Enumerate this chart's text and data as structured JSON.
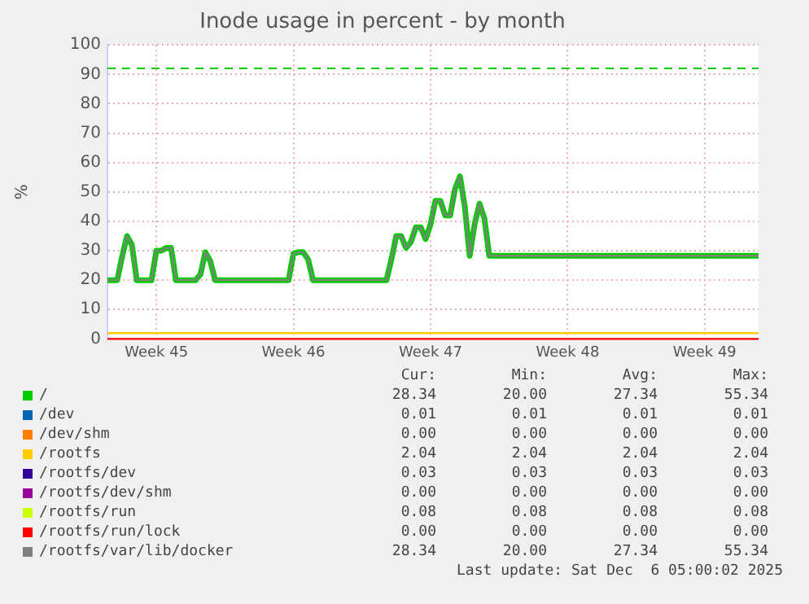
{
  "chart_data": {
    "type": "line",
    "title": "Inode usage in percent - by month",
    "ylabel": "%",
    "categories": [
      null,
      null,
      null,
      null,
      null,
      null,
      null,
      null,
      null,
      null,
      "Week 45",
      null,
      null,
      null,
      null,
      null,
      null,
      null,
      null,
      null,
      null,
      null,
      null,
      null,
      null,
      null,
      null,
      null,
      null,
      null,
      null,
      null,
      null,
      null,
      null,
      null,
      null,
      null,
      "Week 46",
      null,
      null,
      null,
      null,
      null,
      null,
      null,
      null,
      null,
      null,
      null,
      null,
      null,
      null,
      null,
      null,
      null,
      null,
      null,
      null,
      null,
      null,
      null,
      null,
      null,
      null,
      null,
      "Week 47",
      null,
      null,
      null,
      null,
      null,
      null,
      null,
      null,
      null,
      null,
      null,
      null,
      null,
      null,
      null,
      null,
      null,
      null,
      null,
      null,
      null,
      null,
      null,
      null,
      null,
      null,
      null,
      "Week 48",
      null,
      null,
      null,
      null,
      null,
      null,
      null,
      null,
      null,
      null,
      null,
      null,
      null,
      null,
      null,
      null,
      null,
      null,
      null,
      null,
      null,
      null,
      null,
      null,
      null,
      null,
      null,
      "Week 49",
      null,
      null,
      null,
      null,
      null,
      null,
      null,
      null,
      null,
      null,
      null
    ],
    "ylim": [
      0,
      100
    ],
    "yticks": [
      0,
      10,
      20,
      30,
      40,
      50,
      60,
      70,
      80,
      90,
      100
    ],
    "grid": true,
    "legend": "bottom",
    "marker": "none",
    "line_style": "solid",
    "ref_lines": [
      {
        "axis": "y",
        "value": 92,
        "color": "#00cc00",
        "line_style": "dashed"
      }
    ],
    "series": [
      {
        "name": "/",
        "color": "#00cc00",
        "values": [
          20,
          20,
          20,
          28,
          35,
          32,
          20,
          20,
          20,
          20,
          30,
          30,
          31,
          31,
          20,
          20,
          20,
          20,
          20,
          22,
          29.5,
          26.5,
          20,
          20,
          20,
          20,
          20,
          20,
          20,
          20,
          20,
          20,
          20,
          20,
          20,
          20,
          20,
          20,
          29,
          29.5,
          29.5,
          27,
          20,
          20,
          20,
          20,
          20,
          20,
          20,
          20,
          20,
          20,
          20,
          20,
          20,
          20,
          20,
          20,
          27,
          35,
          35,
          31,
          33,
          38,
          38,
          34,
          39,
          47,
          47,
          42,
          42,
          51,
          55.3,
          45,
          28.3,
          39,
          46,
          41,
          28.3,
          28.3,
          28.3,
          28.3,
          28.3,
          28.3,
          28.3,
          28.3,
          28.3,
          28.3,
          28.3,
          28.3,
          28.3,
          28.3,
          28.3,
          28.3,
          28.3,
          28.3,
          28.3,
          28.3,
          28.3,
          28.3,
          28.3,
          28.3,
          28.3,
          28.3,
          28.3,
          28.3,
          28.3,
          28.3,
          28.3,
          28.3,
          28.3,
          28.3,
          28.3,
          28.3,
          28.3,
          28.3,
          28.3,
          28.3,
          28.3,
          28.3,
          28.3,
          28.3,
          28.3,
          28.3,
          28.3,
          28.3,
          28.3,
          28.3,
          28.3,
          28.3,
          28.3,
          28.3,
          28.3,
          28.3
        ]
      },
      {
        "name": "/dev",
        "color": "#0066b3",
        "values": [
          null,
          null,
          null,
          null,
          null,
          null,
          null,
          null,
          null,
          null,
          null,
          null,
          null,
          null,
          null,
          null,
          null,
          null,
          null,
          null,
          null,
          null,
          null,
          null,
          null,
          null,
          null,
          null,
          null,
          null,
          null,
          null,
          null,
          null,
          null,
          null,
          null,
          null,
          null,
          null,
          null,
          null,
          null,
          null,
          null,
          null,
          null,
          null,
          null,
          null,
          null,
          null,
          null,
          null,
          null,
          null,
          null,
          null,
          null,
          null,
          null,
          null,
          null,
          null,
          null,
          null,
          null,
          null,
          null,
          null,
          null,
          null,
          null,
          null,
          null,
          null,
          null,
          null,
          null,
          null,
          null,
          null,
          null,
          null,
          null,
          null,
          null,
          null,
          null,
          null,
          null,
          null,
          null,
          null,
          null,
          null,
          null,
          null,
          null,
          null,
          null,
          null,
          null,
          null,
          null,
          null,
          null,
          null,
          null,
          null,
          null,
          null,
          null,
          null,
          null,
          null,
          null,
          null,
          null,
          null,
          null,
          null,
          null,
          null,
          null,
          null,
          null,
          null,
          null,
          null,
          null,
          null,
          null,
          null
        ]
      },
      {
        "name": "/dev/shm",
        "color": "#ff8000",
        "values": [
          null,
          null,
          null,
          null,
          null,
          null,
          null,
          null,
          null,
          null,
          null,
          null,
          null,
          null,
          null,
          null,
          null,
          null,
          null,
          null,
          null,
          null,
          null,
          null,
          null,
          null,
          null,
          null,
          null,
          null,
          null,
          null,
          null,
          null,
          null,
          null,
          null,
          null,
          null,
          null,
          null,
          null,
          null,
          null,
          null,
          null,
          null,
          null,
          null,
          null,
          null,
          null,
          null,
          null,
          null,
          null,
          null,
          null,
          null,
          null,
          null,
          null,
          null,
          null,
          null,
          null,
          null,
          null,
          null,
          null,
          null,
          null,
          null,
          null,
          null,
          null,
          null,
          null,
          null,
          null,
          null,
          null,
          null,
          null,
          null,
          null,
          null,
          null,
          null,
          null,
          null,
          null,
          null,
          null,
          null,
          null,
          null,
          null,
          null,
          null,
          null,
          null,
          null,
          null,
          null,
          null,
          null,
          null,
          null,
          null,
          null,
          null,
          null,
          null,
          null,
          null,
          null,
          null,
          null,
          null,
          null,
          null,
          null,
          null,
          null,
          null,
          null,
          null,
          null,
          null,
          null,
          null,
          null,
          null
        ]
      },
      {
        "name": "/rootfs",
        "color": "#ffcc00",
        "values": [
          2,
          2,
          2,
          2,
          2,
          2,
          2,
          2,
          2,
          2,
          2,
          2,
          2,
          2,
          2,
          2,
          2,
          2,
          2,
          2,
          2,
          2,
          2,
          2,
          2,
          2,
          2,
          2,
          2,
          2,
          2,
          2,
          2,
          2,
          2,
          2,
          2,
          2,
          2,
          2,
          2,
          2,
          2,
          2,
          2,
          2,
          2,
          2,
          2,
          2,
          2,
          2,
          2,
          2,
          2,
          2,
          2,
          2,
          2,
          2,
          2,
          2,
          2,
          2,
          2,
          2,
          2,
          2,
          2,
          2,
          2,
          2,
          2,
          2,
          2,
          2,
          2,
          2,
          2,
          2,
          2,
          2,
          2,
          2,
          2,
          2,
          2,
          2,
          2,
          2,
          2,
          2,
          2,
          2,
          2,
          2,
          2,
          2,
          2,
          2,
          2,
          2,
          2,
          2,
          2,
          2,
          2,
          2,
          2,
          2,
          2,
          2,
          2,
          2,
          2,
          2,
          2,
          2,
          2,
          2,
          2,
          2,
          2,
          2,
          2,
          2,
          2,
          2,
          2,
          2,
          2,
          2,
          2,
          2
        ]
      },
      {
        "name": "/rootfs/dev",
        "color": "#330099",
        "values": [
          null,
          null,
          null,
          null,
          null,
          null,
          null,
          null,
          null,
          null,
          null,
          null,
          null,
          null,
          null,
          null,
          null,
          null,
          null,
          null,
          null,
          null,
          null,
          null,
          null,
          null,
          null,
          null,
          null,
          null,
          null,
          null,
          null,
          null,
          null,
          null,
          null,
          null,
          null,
          null,
          null,
          null,
          null,
          null,
          null,
          null,
          null,
          null,
          null,
          null,
          null,
          null,
          null,
          null,
          null,
          null,
          null,
          null,
          null,
          null,
          null,
          null,
          null,
          null,
          null,
          null,
          null,
          null,
          null,
          null,
          null,
          null,
          null,
          null,
          null,
          null,
          null,
          null,
          null,
          null,
          null,
          null,
          null,
          null,
          null,
          null,
          null,
          null,
          null,
          null,
          null,
          null,
          null,
          null,
          null,
          null,
          null,
          null,
          null,
          null,
          null,
          null,
          null,
          null,
          null,
          null,
          null,
          null,
          null,
          null,
          null,
          null,
          null,
          null,
          null,
          null,
          null,
          null,
          null,
          null,
          null,
          null,
          null,
          null,
          null,
          null,
          null,
          null,
          null,
          null,
          null,
          null,
          null,
          null
        ]
      },
      {
        "name": "/rootfs/dev/shm",
        "color": "#990099",
        "values": [
          null,
          null,
          null,
          null,
          null,
          null,
          null,
          null,
          null,
          null,
          null,
          null,
          null,
          null,
          null,
          null,
          null,
          null,
          null,
          null,
          null,
          null,
          null,
          null,
          null,
          null,
          null,
          null,
          null,
          null,
          null,
          null,
          null,
          null,
          null,
          null,
          null,
          null,
          null,
          null,
          null,
          null,
          null,
          null,
          null,
          null,
          null,
          null,
          null,
          null,
          null,
          null,
          null,
          null,
          null,
          null,
          null,
          null,
          null,
          null,
          null,
          null,
          null,
          null,
          null,
          null,
          null,
          null,
          null,
          null,
          null,
          null,
          null,
          null,
          null,
          null,
          null,
          null,
          null,
          null,
          null,
          null,
          null,
          null,
          null,
          null,
          null,
          null,
          null,
          null,
          null,
          null,
          null,
          null,
          null,
          null,
          null,
          null,
          null,
          null,
          null,
          null,
          null,
          null,
          null,
          null,
          null,
          null,
          null,
          null,
          null,
          null,
          null,
          null,
          null,
          null,
          null,
          null,
          null,
          null,
          null,
          null,
          null,
          null,
          null,
          null,
          null,
          null,
          null,
          null,
          null,
          null,
          null,
          null
        ]
      },
      {
        "name": "/rootfs/run",
        "color": "#ccff00",
        "values": [
          null,
          null,
          null,
          null,
          null,
          null,
          null,
          null,
          null,
          null,
          null,
          null,
          null,
          null,
          null,
          null,
          null,
          null,
          null,
          null,
          null,
          null,
          null,
          null,
          null,
          null,
          null,
          null,
          null,
          null,
          null,
          null,
          null,
          null,
          null,
          null,
          null,
          null,
          null,
          null,
          null,
          null,
          null,
          null,
          null,
          null,
          null,
          null,
          null,
          null,
          null,
          null,
          null,
          null,
          null,
          null,
          null,
          null,
          null,
          null,
          null,
          null,
          null,
          null,
          null,
          null,
          null,
          null,
          null,
          null,
          null,
          null,
          null,
          null,
          null,
          null,
          null,
          null,
          null,
          null,
          null,
          null,
          null,
          null,
          null,
          null,
          null,
          null,
          null,
          null,
          null,
          null,
          null,
          null,
          null,
          null,
          null,
          null,
          null,
          null,
          null,
          null,
          null,
          null,
          null,
          null,
          null,
          null,
          null,
          null,
          null,
          null,
          null,
          null,
          null,
          null,
          null,
          null,
          null,
          null,
          null,
          null,
          null,
          null,
          null,
          null,
          null,
          null,
          null,
          null,
          null,
          null,
          null,
          null
        ]
      },
      {
        "name": "/rootfs/run/lock",
        "color": "#ff0000",
        "values": [
          0,
          0,
          0,
          0,
          0,
          0,
          0,
          0,
          0,
          0,
          0,
          0,
          0,
          0,
          0,
          0,
          0,
          0,
          0,
          0,
          0,
          0,
          0,
          0,
          0,
          0,
          0,
          0,
          0,
          0,
          0,
          0,
          0,
          0,
          0,
          0,
          0,
          0,
          0,
          0,
          0,
          0,
          0,
          0,
          0,
          0,
          0,
          0,
          0,
          0,
          0,
          0,
          0,
          0,
          0,
          0,
          0,
          0,
          0,
          0,
          0,
          0,
          0,
          0,
          0,
          0,
          0,
          0,
          0,
          0,
          0,
          0,
          0,
          0,
          0,
          0,
          0,
          0,
          0,
          0,
          0,
          0,
          0,
          0,
          0,
          0,
          0,
          0,
          0,
          0,
          0,
          0,
          0,
          0,
          0,
          0,
          0,
          0,
          0,
          0,
          0,
          0,
          0,
          0,
          0,
          0,
          0,
          0,
          0,
          0,
          0,
          0,
          0,
          0,
          0,
          0,
          0,
          0,
          0,
          0,
          0,
          0,
          0,
          0,
          0,
          0,
          0,
          0,
          0,
          0,
          0,
          0,
          0,
          0
        ]
      },
      {
        "name": "/rootfs/var/lib/docker",
        "color": "#808080",
        "values": [
          20,
          20,
          20,
          28,
          35,
          32,
          20,
          20,
          20,
          20,
          30,
          30,
          31,
          31,
          20,
          20,
          20,
          20,
          20,
          22,
          29.5,
          26.5,
          20,
          20,
          20,
          20,
          20,
          20,
          20,
          20,
          20,
          20,
          20,
          20,
          20,
          20,
          20,
          20,
          29,
          29.5,
          29.5,
          27,
          20,
          20,
          20,
          20,
          20,
          20,
          20,
          20,
          20,
          20,
          20,
          20,
          20,
          20,
          20,
          20,
          27,
          35,
          35,
          31,
          33,
          38,
          38,
          34,
          39,
          47,
          47,
          42,
          42,
          51,
          55.3,
          45,
          28.3,
          39,
          46,
          41,
          28.3,
          28.3,
          28.3,
          28.3,
          28.3,
          28.3,
          28.3,
          28.3,
          28.3,
          28.3,
          28.3,
          28.3,
          28.3,
          28.3,
          28.3,
          28.3,
          28.3,
          28.3,
          28.3,
          28.3,
          28.3,
          28.3,
          28.3,
          28.3,
          28.3,
          28.3,
          28.3,
          28.3,
          28.3,
          28.3,
          28.3,
          28.3,
          28.3,
          28.3,
          28.3,
          28.3,
          28.3,
          28.3,
          28.3,
          28.3,
          28.3,
          28.3,
          28.3,
          28.3,
          28.3,
          28.3,
          28.3,
          28.3,
          28.3,
          28.3,
          28.3,
          28.3,
          28.3,
          28.3,
          28.3,
          28.3
        ]
      }
    ],
    "annotations": [
      "Cur:",
      "Min:",
      "Avg:",
      "Max:",
      "28.34",
      "20.00",
      "27.34",
      "55.34",
      "0.01",
      "0.01",
      "0.01",
      "0.01",
      "0.00",
      "0.00",
      "0.00",
      "0.00",
      "2.04",
      "2.04",
      "2.04",
      "2.04",
      "0.03",
      "0.03",
      "0.03",
      "0.03",
      "0.00",
      "0.00",
      "0.00",
      "0.00",
      "0.08",
      "0.08",
      "0.08",
      "0.08",
      "0.00",
      "0.00",
      "0.00",
      "0.00",
      "28.34",
      "20.00",
      "27.34",
      "55.34",
      "Last update: Sat Dec  6 05:00:02 2025"
    ]
  }
}
